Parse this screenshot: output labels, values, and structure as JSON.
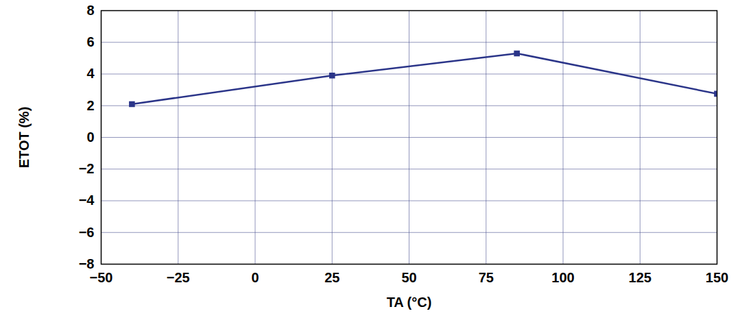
{
  "chart_data": {
    "type": "line",
    "x_label": "TA (°C)",
    "y_label": "ETOT (%)",
    "x": [
      -40,
      25,
      85,
      150
    ],
    "series": [
      {
        "name": "ETOT",
        "color": "#2b3589",
        "values": [
          2.1,
          3.9,
          5.3,
          2.75
        ]
      }
    ],
    "xlim": [
      -50,
      150
    ],
    "xticks": [
      -50,
      -25,
      0,
      25,
      50,
      75,
      100,
      125,
      150
    ],
    "ylim": [
      -8,
      8
    ],
    "yticks": [
      -8,
      -6,
      -4,
      -2,
      0,
      2,
      4,
      6,
      8
    ],
    "grid": true,
    "marker": "square",
    "line_style": "solid"
  }
}
